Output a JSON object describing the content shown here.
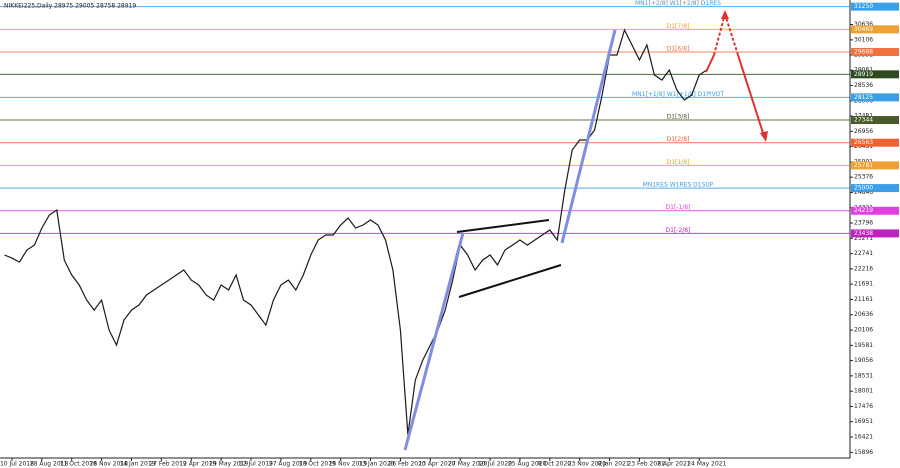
{
  "chart_data": {
    "type": "line",
    "title": "NIKKEI225,Daily  28975 29005 28758 28919",
    "color": "#1a1a1a",
    "categories": [
      null,
      "10 Jul 2018",
      null,
      null,
      null,
      "28 Aug 2018",
      null,
      null,
      null,
      "11 Oct 2018",
      null,
      null,
      null,
      "26 Nov 2018",
      null,
      null,
      null,
      "14 Jan 2019",
      null,
      null,
      null,
      "27 Feb 2019",
      null,
      null,
      null,
      "12 Apr 2019",
      null,
      null,
      null,
      "29 May 2019",
      null,
      null,
      null,
      "12 Jul 2019",
      null,
      null,
      null,
      "27 Aug 2019",
      null,
      null,
      null,
      "10 Oct 2019",
      null,
      null,
      null,
      "25 Nov 2019",
      null,
      null,
      null,
      "13 Jan 2020",
      null,
      null,
      null,
      "26 Feb 2020",
      null,
      null,
      null,
      "13 Apr 2020",
      null,
      null,
      null,
      "27 May 2020",
      null,
      null,
      null,
      "10 Jul 2020",
      null,
      null,
      null,
      "25 Aug 2020",
      null,
      null,
      null,
      "8 Oct 2020",
      null,
      null,
      null,
      "23 Nov 2020",
      null,
      null,
      null,
      "8 Jan 2021",
      null,
      null,
      null,
      "23 Feb 2021",
      null,
      null,
      null,
      "8 Apr 2021",
      null,
      null,
      null,
      "24 May 2021",
      null
    ],
    "values": [
      22693,
      22589,
      22451,
      22865,
      23037,
      23623,
      24071,
      24243,
      22520,
      22004,
      21659,
      21142,
      20797,
      21142,
      20108,
      19591,
      20453,
      20797,
      20970,
      21314,
      21487,
      21659,
      21831,
      22004,
      22176,
      21831,
      21659,
      21314,
      21142,
      21659,
      21487,
      22004,
      21142,
      20970,
      20625,
      20280,
      21142,
      21659,
      21831,
      21487,
      22004,
      22693,
      23210,
      23382,
      23382,
      23727,
      23968,
      23623,
      23727,
      23899,
      23727,
      23210,
      22176,
      20108,
      16500,
      18385,
      19074,
      19591,
      20108,
      20797,
      21831,
      23037,
      22693,
      22176,
      22520,
      22693,
      22348,
      22865,
      23037,
      23210,
      23037,
      23210,
      23382,
      23555,
      23210,
      24933,
      26311,
      26656,
      26656,
      27000,
      28206,
      29585,
      29585,
      30446,
      29929,
      29412,
      29929,
      28895,
      28723,
      29068,
      28379,
      28034,
      28206,
      28895,
      29068
    ],
    "ylim": [
      15700,
      31480
    ],
    "yticks": [
      15896,
      16421,
      16951,
      17476,
      18001,
      18531,
      19056,
      19581,
      20106,
      20636,
      21161,
      21691,
      22216,
      22741,
      23271,
      23796,
      24321,
      24846,
      25376,
      25901,
      26431,
      26956,
      27481,
      28006,
      28536,
      29061,
      29591,
      30106,
      30636
    ],
    "levels": [
      {
        "label": "MN1[+2/8] W1[+2/8] D1RES",
        "value": 31250,
        "color": "#3a9ee8"
      },
      {
        "label": "D1[7/8]",
        "value": 30469,
        "color": "#f0a030"
      },
      {
        "label": "D1[6/8]",
        "value": 29688,
        "color": "#f07040"
      },
      {
        "value": 28919,
        "color": "#2e4a1e"
      },
      {
        "label": "MN1[+1/8] W1[+1/8] D1PIVOT",
        "value": 28125,
        "color": "#3a9ee8"
      },
      {
        "label": "D1[3/8]",
        "value": 27344,
        "color": "#4a5a2a"
      },
      {
        "label": "D1[2/8]",
        "value": 26563,
        "color": "#f06030"
      },
      {
        "label": "D1[1/8]",
        "value": 25781,
        "color": "#f0a030"
      },
      {
        "label": "MN1RES W1RES D1SUP",
        "value": 25000,
        "color": "#3a9ee8"
      },
      {
        "label": "D1[-1/8]",
        "value": 24219,
        "color": "#e040e0"
      },
      {
        "label": "D1[-2/8]",
        "value": 23438,
        "color": "#c020c0"
      }
    ]
  }
}
